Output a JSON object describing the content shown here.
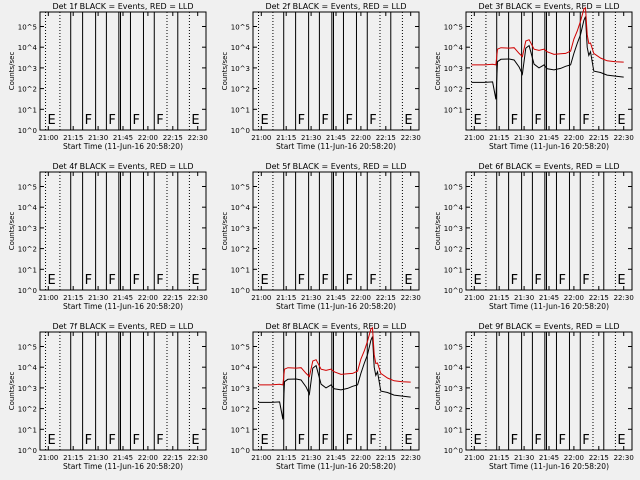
{
  "chart_data": {
    "type": "line",
    "panels": [
      {
        "title": "Det 1f BLACK = Events, RED = LLD",
        "xlabel": "Start Time (11-Jun-16 20:58:20)",
        "ylabel": "Counts/sec",
        "x_ticks": [
          "21:00",
          "21:15",
          "21:30",
          "21:45",
          "22:00",
          "22:15",
          "22:30"
        ],
        "y_ticks": [
          "10^0",
          "10^1",
          "10^2",
          "10^3",
          "10^4",
          "10^5"
        ],
        "has_data": false
      },
      {
        "title": "Det 2f BLACK = Events, RED = LLD",
        "xlabel": "Start Time (11-Jun-16 20:58:20)",
        "ylabel": "Counts/sec",
        "x_ticks": [
          "21:00",
          "21:15",
          "21:30",
          "21:45",
          "22:00",
          "22:15",
          "22:30"
        ],
        "y_ticks": [
          "10^0",
          "10^1",
          "10^2",
          "10^3",
          "10^4",
          "10^5"
        ],
        "has_data": false
      },
      {
        "title": "Det 3f BLACK = Events, RED = LLD",
        "xlabel": "Start Time (11-Jun-16 20:58:20)",
        "ylabel": "Counts/sec",
        "x_ticks": [
          "21:00",
          "21:15",
          "21:30",
          "21:45",
          "22:00",
          "22:15",
          "22:30"
        ],
        "y_ticks": [
          "10^1",
          "10^2",
          "10^3",
          "10^4",
          "10^5"
        ],
        "has_data": true
      },
      {
        "title": "Det 4f BLACK = Events, RED = LLD",
        "xlabel": "Start Time (11-Jun-16 20:58:20)",
        "ylabel": "Counts/sec",
        "x_ticks": [
          "21:00",
          "21:15",
          "21:30",
          "21:45",
          "22:00",
          "22:15",
          "22:30"
        ],
        "y_ticks": [
          "10^0",
          "10^1",
          "10^2",
          "10^3",
          "10^4",
          "10^5"
        ],
        "has_data": false
      },
      {
        "title": "Det 5f BLACK = Events, RED = LLD",
        "xlabel": "Start Time (11-Jun-16 20:58:20)",
        "ylabel": "Counts/sec",
        "x_ticks": [
          "21:00",
          "21:15",
          "21:30",
          "21:45",
          "22:00",
          "22:15",
          "22:30"
        ],
        "y_ticks": [
          "10^0",
          "10^1",
          "10^2",
          "10^3",
          "10^4",
          "10^5"
        ],
        "has_data": false
      },
      {
        "title": "Det 6f BLACK = Events, RED = LLD",
        "xlabel": "Start Time (11-Jun-16 20:58:20)",
        "ylabel": "Counts/sec",
        "x_ticks": [
          "21:00",
          "21:15",
          "21:30",
          "21:45",
          "22:00",
          "22:15",
          "22:30"
        ],
        "y_ticks": [
          "10^0",
          "10^1",
          "10^2",
          "10^3",
          "10^4",
          "10^5"
        ],
        "has_data": false
      },
      {
        "title": "Det 7f BLACK = Events, RED = LLD",
        "xlabel": "Start Time (11-Jun-16 20:58:20)",
        "ylabel": "Counts/sec",
        "x_ticks": [
          "21:00",
          "21:15",
          "21:30",
          "21:45",
          "22:00",
          "22:15",
          "22:30"
        ],
        "y_ticks": [
          "10^0",
          "10^1",
          "10^2",
          "10^3",
          "10^4",
          "10^5"
        ],
        "has_data": false
      },
      {
        "title": "Det 8f BLACK = Events, RED = LLD",
        "xlabel": "Start Time (11-Jun-16 20:58:20)",
        "ylabel": "Counts/sec",
        "x_ticks": [
          "21:00",
          "21:15",
          "21:30",
          "21:45",
          "22:00",
          "22:15",
          "22:30"
        ],
        "y_ticks": [
          "10^0",
          "10^1",
          "10^2",
          "10^3",
          "10^4",
          "10^5"
        ],
        "has_data": true
      },
      {
        "title": "Det 9f BLACK = Events, RED = LLD",
        "xlabel": "Start Time (11-Jun-16 20:58:20)",
        "ylabel": "Counts/sec",
        "x_ticks": [
          "21:00",
          "21:15",
          "21:30",
          "21:45",
          "22:00",
          "22:15",
          "22:30"
        ],
        "y_ticks": [
          "10^0",
          "10^1",
          "10^2",
          "10^3",
          "10^4",
          "10^5"
        ],
        "has_data": false
      }
    ],
    "markers": [
      {
        "time": "20:58:20",
        "style": "dotted",
        "label": "E"
      },
      {
        "time": "21:07:00",
        "style": "dotted",
        "label": ""
      },
      {
        "time": "21:13:30",
        "style": "solid",
        "label": ""
      },
      {
        "time": "21:20:40",
        "style": "solid",
        "label": "F"
      },
      {
        "time": "21:28:30",
        "style": "solid",
        "label": ""
      },
      {
        "time": "21:35:00",
        "style": "solid",
        "label": "F"
      },
      {
        "time": "21:42:30",
        "style": "solid",
        "label": ""
      },
      {
        "time": "21:43:30",
        "style": "solid",
        "label": ""
      },
      {
        "time": "21:49:30",
        "style": "solid",
        "label": "F"
      },
      {
        "time": "21:57:20",
        "style": "solid",
        "label": ""
      },
      {
        "time": "22:03:50",
        "style": "solid",
        "label": "F"
      },
      {
        "time": "22:11:30",
        "style": "dotted",
        "label": ""
      },
      {
        "time": "22:18:00",
        "style": "solid",
        "label": ""
      },
      {
        "time": "22:25:00",
        "style": "dotted",
        "label": "E"
      }
    ],
    "series": [
      {
        "color": "#000000",
        "x": [
          "20:58:20",
          "21:06",
          "21:11",
          "21:13",
          "21:14",
          "21:16",
          "21:21",
          "21:24",
          "21:27",
          "21:29",
          "21:31",
          "21:33",
          "21:36",
          "21:39",
          "21:42",
          "21:44",
          "21:48",
          "21:52",
          "21:55",
          "21:58",
          "22:00",
          "22:02",
          "22:04",
          "22:06",
          "22:07",
          "22:08",
          "22:09",
          "22:10",
          "22:12",
          "22:16",
          "22:20",
          "22:25",
          "22:30"
        ],
        "y": [
          200,
          200,
          210,
          30,
          2000,
          2600,
          2700,
          2400,
          1100,
          500,
          9000,
          12000,
          1500,
          1000,
          1400,
          900,
          800,
          950,
          1200,
          1400,
          5000,
          15000,
          40000,
          200000,
          300000,
          10000,
          4000,
          6000,
          700,
          600,
          450,
          400,
          360
        ]
      },
      {
        "color": "#d00000",
        "x": [
          "20:58:20",
          "21:06",
          "21:11",
          "21:13",
          "21:14",
          "21:16",
          "21:21",
          "21:24",
          "21:27",
          "21:29",
          "21:31",
          "21:33",
          "21:36",
          "21:39",
          "21:42",
          "21:44",
          "21:48",
          "21:52",
          "21:55",
          "21:58",
          "22:00",
          "22:02",
          "22:04",
          "22:06",
          "22:07",
          "22:08",
          "22:09",
          "22:10",
          "22:12",
          "22:16",
          "22:20",
          "22:25",
          "22:30"
        ],
        "y": [
          1400,
          1400,
          1500,
          1400,
          8000,
          9500,
          9000,
          9500,
          5000,
          3500,
          20000,
          23000,
          8000,
          7000,
          8000,
          6000,
          4500,
          4800,
          5000,
          6500,
          25000,
          60000,
          180000,
          700000,
          800000,
          40000,
          15000,
          16000,
          5000,
          3000,
          2200,
          2000,
          1900
        ]
      }
    ]
  }
}
